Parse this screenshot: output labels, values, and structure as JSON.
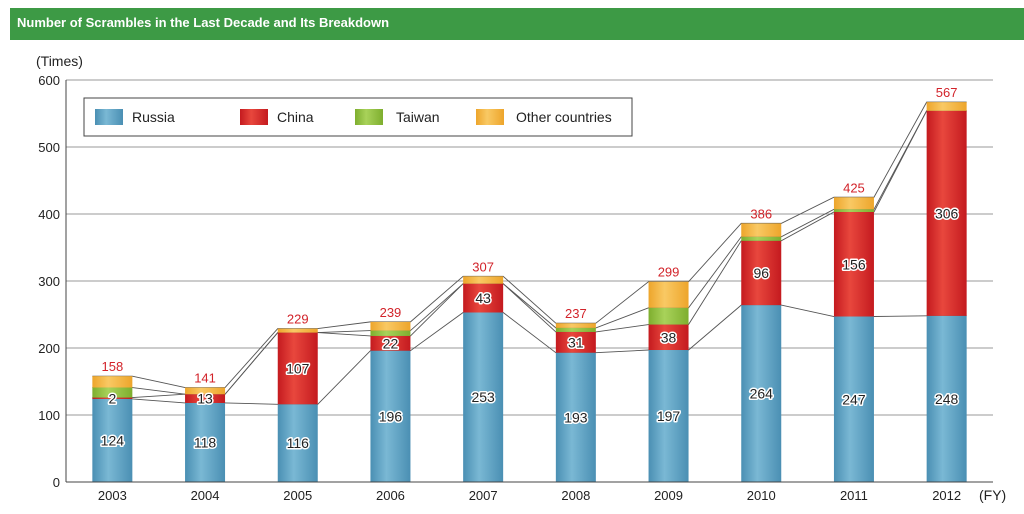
{
  "header": {
    "title": "Number of Scrambles in the Last Decade and Its Breakdown"
  },
  "chart_data": {
    "type": "bar",
    "stacked": true,
    "title": "Number of Scrambles in the Last Decade and Its Breakdown",
    "ylabel": "(Times)",
    "xlabel": "(FY)",
    "ylim": [
      0,
      600
    ],
    "yticks": [
      0,
      100,
      200,
      300,
      400,
      500,
      600
    ],
    "legend_position": "top-left",
    "categories": [
      "2003",
      "2004",
      "2005",
      "2006",
      "2007",
      "2008",
      "2009",
      "2010",
      "2011",
      "2012"
    ],
    "series": [
      {
        "name": "Russia",
        "color": "#5ba4c4",
        "values": [
          124,
          118,
          116,
          196,
          253,
          193,
          197,
          264,
          247,
          248
        ],
        "labels": [
          "124",
          "118",
          "116",
          "196",
          "253",
          "193",
          "197",
          "264",
          "247",
          "248"
        ]
      },
      {
        "name": "China",
        "color": "#d7262a",
        "values": [
          2,
          13,
          107,
          22,
          43,
          31,
          38,
          96,
          156,
          306
        ],
        "labels": [
          "2",
          "13",
          "107",
          "22",
          "43",
          "31",
          "38",
          "96",
          "156",
          "306"
        ]
      },
      {
        "name": "Taiwan",
        "color": "#90bf3d",
        "values": [
          15,
          0,
          0,
          8,
          0,
          6,
          25,
          6,
          4,
          0
        ],
        "labels": []
      },
      {
        "name": "Other countries",
        "color": "#f3b23b",
        "values": [
          17,
          10,
          6,
          13,
          11,
          7,
          39,
          20,
          18,
          13
        ],
        "labels": []
      }
    ],
    "totals": [
      "158",
      "141",
      "229",
      "239",
      "307",
      "237",
      "299",
      "386",
      "425",
      "567"
    ]
  }
}
